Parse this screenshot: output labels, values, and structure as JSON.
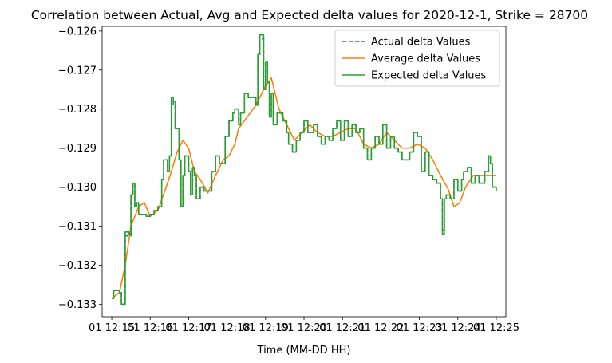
{
  "chart_data": {
    "type": "line",
    "title": "Correlation between Actual, Avg and Expected delta values for 2020-12-1, Strike = 28700",
    "xlabel": "Time (MM-DD HH)",
    "ylabel": "",
    "x_ticks": [
      "01 12:15",
      "01 12:16",
      "01 12:17",
      "01 12:18",
      "01 12:19",
      "01 12:20",
      "01 12:21",
      "01 12:22",
      "01 12:23",
      "01 12:24",
      "01 12:25"
    ],
    "xlim_minutes": [
      -0.25,
      10.25
    ],
    "ylim": [
      -0.13332,
      -0.12588
    ],
    "y_ticks": [
      -0.126,
      -0.127,
      -0.128,
      -0.129,
      -0.13,
      -0.131,
      -0.132,
      -0.133
    ],
    "y_tick_labels": [
      "−0.126",
      "−0.127",
      "−0.128",
      "−0.129",
      "−0.130",
      "−0.131",
      "−0.132",
      "−0.133"
    ],
    "grid": false,
    "legend_position": "top-right",
    "series": [
      {
        "name": "Actual delta Values",
        "color": "#1f77b4",
        "style": "dashed",
        "step": true,
        "points": [
          [
            0.0,
            -0.13285
          ],
          [
            0.05,
            -0.13265
          ],
          [
            0.2,
            -0.1327
          ],
          [
            0.25,
            -0.133
          ],
          [
            0.35,
            -0.13125
          ],
          [
            0.45,
            -0.13125
          ],
          [
            0.5,
            -0.1302
          ],
          [
            0.55,
            -0.1299
          ],
          [
            0.6,
            -0.1305
          ],
          [
            0.65,
            -0.1304
          ],
          [
            0.7,
            -0.1307
          ],
          [
            0.8,
            -0.1307
          ],
          [
            0.9,
            -0.13075
          ],
          [
            1.0,
            -0.1307
          ],
          [
            1.1,
            -0.1306
          ],
          [
            1.2,
            -0.1305
          ],
          [
            1.3,
            -0.1298
          ],
          [
            1.35,
            -0.1293
          ],
          [
            1.45,
            -0.1296
          ],
          [
            1.5,
            -0.1292
          ],
          [
            1.55,
            -0.1278
          ],
          [
            1.6,
            -0.1279
          ],
          [
            1.65,
            -0.1285
          ],
          [
            1.75,
            -0.1293
          ],
          [
            1.8,
            -0.1305
          ],
          [
            1.85,
            -0.1297
          ],
          [
            1.9,
            -0.1292
          ],
          [
            2.0,
            -0.1296
          ],
          [
            2.05,
            -0.1302
          ],
          [
            2.1,
            -0.1295
          ],
          [
            2.15,
            -0.1297
          ],
          [
            2.2,
            -0.1303
          ],
          [
            2.3,
            -0.13
          ],
          [
            2.4,
            -0.1301
          ],
          [
            2.5,
            -0.1301
          ],
          [
            2.6,
            -0.1296
          ],
          [
            2.7,
            -0.1292
          ],
          [
            2.8,
            -0.1294
          ],
          [
            2.95,
            -0.1287
          ],
          [
            3.05,
            -0.1283
          ],
          [
            3.15,
            -0.1281
          ],
          [
            3.2,
            -0.128
          ],
          [
            3.3,
            -0.1284
          ],
          [
            3.35,
            -0.1281
          ],
          [
            3.45,
            -0.1276
          ],
          [
            3.55,
            -0.1277
          ],
          [
            3.7,
            -0.1277
          ],
          [
            3.75,
            -0.1279
          ],
          [
            3.8,
            -0.1266
          ],
          [
            3.85,
            -0.1262
          ],
          [
            3.9,
            -0.1262
          ],
          [
            3.95,
            -0.1275
          ],
          [
            4.0,
            -0.1268
          ],
          [
            4.05,
            -0.1273
          ],
          [
            4.1,
            -0.1282
          ],
          [
            4.15,
            -0.1276
          ],
          [
            4.2,
            -0.1284
          ],
          [
            4.3,
            -0.1281
          ],
          [
            4.45,
            -0.1283
          ],
          [
            4.55,
            -0.1286
          ],
          [
            4.6,
            -0.1289
          ],
          [
            4.7,
            -0.1291
          ],
          [
            4.8,
            -0.1288
          ],
          [
            4.9,
            -0.1286
          ],
          [
            5.0,
            -0.1283
          ],
          [
            5.1,
            -0.1286
          ],
          [
            5.25,
            -0.1284
          ],
          [
            5.35,
            -0.1287
          ],
          [
            5.45,
            -0.1289
          ],
          [
            5.55,
            -0.1287
          ],
          [
            5.65,
            -0.1288
          ],
          [
            5.75,
            -0.1285
          ],
          [
            5.85,
            -0.1283
          ],
          [
            5.95,
            -0.1288
          ],
          [
            6.05,
            -0.1283
          ],
          [
            6.15,
            -0.1287
          ],
          [
            6.25,
            -0.1284
          ],
          [
            6.35,
            -0.1286
          ],
          [
            6.45,
            -0.1285
          ],
          [
            6.55,
            -0.129
          ],
          [
            6.65,
            -0.1293
          ],
          [
            6.75,
            -0.129
          ],
          [
            6.85,
            -0.1287
          ],
          [
            6.95,
            -0.1289
          ],
          [
            7.05,
            -0.1284
          ],
          [
            7.15,
            -0.129
          ],
          [
            7.25,
            -0.1287
          ],
          [
            7.35,
            -0.129
          ],
          [
            7.45,
            -0.1291
          ],
          [
            7.55,
            -0.1293
          ],
          [
            7.65,
            -0.1293
          ],
          [
            7.75,
            -0.1291
          ],
          [
            7.85,
            -0.1286
          ],
          [
            7.95,
            -0.1287
          ],
          [
            8.05,
            -0.1296
          ],
          [
            8.15,
            -0.1291
          ],
          [
            8.25,
            -0.1297
          ],
          [
            8.35,
            -0.1298
          ],
          [
            8.45,
            -0.1299
          ],
          [
            8.55,
            -0.1303
          ],
          [
            8.6,
            -0.1311
          ],
          [
            8.65,
            -0.1303
          ],
          [
            8.7,
            -0.1302
          ],
          [
            8.8,
            -0.1303
          ],
          [
            8.9,
            -0.1298
          ],
          [
            9.0,
            -0.1301
          ],
          [
            9.1,
            -0.1298
          ],
          [
            9.15,
            -0.1296
          ],
          [
            9.25,
            -0.1295
          ],
          [
            9.35,
            -0.1299
          ],
          [
            9.45,
            -0.1297
          ],
          [
            9.55,
            -0.1299
          ],
          [
            9.65,
            -0.1299
          ],
          [
            9.7,
            -0.1296
          ],
          [
            9.8,
            -0.1292
          ],
          [
            9.85,
            -0.1294
          ],
          [
            9.9,
            -0.13
          ],
          [
            10.0,
            -0.1301
          ]
        ]
      },
      {
        "name": "Average delta Values",
        "color": "#ff7f0e",
        "style": "solid",
        "step": false,
        "points": [
          [
            0.0,
            -0.13285
          ],
          [
            0.2,
            -0.1327
          ],
          [
            0.35,
            -0.132
          ],
          [
            0.5,
            -0.131
          ],
          [
            0.7,
            -0.1305
          ],
          [
            0.85,
            -0.1304
          ],
          [
            1.0,
            -0.13075
          ],
          [
            1.2,
            -0.1306
          ],
          [
            1.45,
            -0.1299
          ],
          [
            1.55,
            -0.1296
          ],
          [
            1.7,
            -0.1291
          ],
          [
            1.85,
            -0.1288
          ],
          [
            2.0,
            -0.129
          ],
          [
            2.15,
            -0.1296
          ],
          [
            2.3,
            -0.1298
          ],
          [
            2.5,
            -0.13015
          ],
          [
            2.7,
            -0.1297
          ],
          [
            2.9,
            -0.1293
          ],
          [
            3.05,
            -0.1292
          ],
          [
            3.2,
            -0.1289
          ],
          [
            3.3,
            -0.1285
          ],
          [
            3.45,
            -0.1283
          ],
          [
            3.6,
            -0.1281
          ],
          [
            3.75,
            -0.1279
          ],
          [
            3.9,
            -0.1276
          ],
          [
            4.0,
            -0.1274
          ],
          [
            4.1,
            -0.1273
          ],
          [
            4.15,
            -0.1272
          ],
          [
            4.25,
            -0.1276
          ],
          [
            4.35,
            -0.128
          ],
          [
            4.55,
            -0.1284
          ],
          [
            4.75,
            -0.1288
          ],
          [
            4.95,
            -0.1286
          ],
          [
            5.15,
            -0.1284
          ],
          [
            5.35,
            -0.1286
          ],
          [
            5.55,
            -0.1287
          ],
          [
            5.75,
            -0.1287
          ],
          [
            5.95,
            -0.1286
          ],
          [
            6.15,
            -0.1285
          ],
          [
            6.35,
            -0.1285
          ],
          [
            6.55,
            -0.1289
          ],
          [
            6.75,
            -0.129
          ],
          [
            6.95,
            -0.1289
          ],
          [
            7.15,
            -0.1286
          ],
          [
            7.35,
            -0.1288
          ],
          [
            7.55,
            -0.129
          ],
          [
            7.75,
            -0.129
          ],
          [
            7.95,
            -0.1289
          ],
          [
            8.15,
            -0.129
          ],
          [
            8.35,
            -0.1293
          ],
          [
            8.55,
            -0.1297
          ],
          [
            8.75,
            -0.13005
          ],
          [
            8.9,
            -0.1305
          ],
          [
            9.05,
            -0.1304
          ],
          [
            9.2,
            -0.13
          ],
          [
            9.4,
            -0.1297
          ],
          [
            9.6,
            -0.1297
          ],
          [
            9.8,
            -0.1297
          ],
          [
            10.0,
            -0.1297
          ]
        ]
      },
      {
        "name": "Expected delta Values",
        "color": "#2ca02c",
        "style": "solid",
        "step": true,
        "points": [
          [
            0.0,
            -0.13285
          ],
          [
            0.05,
            -0.13265
          ],
          [
            0.2,
            -0.1327
          ],
          [
            0.25,
            -0.133
          ],
          [
            0.35,
            -0.13115
          ],
          [
            0.45,
            -0.1312
          ],
          [
            0.5,
            -0.1302
          ],
          [
            0.55,
            -0.1299
          ],
          [
            0.6,
            -0.1305
          ],
          [
            0.65,
            -0.1304
          ],
          [
            0.7,
            -0.1307
          ],
          [
            0.8,
            -0.1307
          ],
          [
            0.9,
            -0.13075
          ],
          [
            1.0,
            -0.1307
          ],
          [
            1.1,
            -0.1306
          ],
          [
            1.2,
            -0.1305
          ],
          [
            1.3,
            -0.1298
          ],
          [
            1.35,
            -0.1293
          ],
          [
            1.45,
            -0.1296
          ],
          [
            1.5,
            -0.1292
          ],
          [
            1.55,
            -0.1277
          ],
          [
            1.6,
            -0.1278
          ],
          [
            1.65,
            -0.1285
          ],
          [
            1.75,
            -0.1293
          ],
          [
            1.8,
            -0.1305
          ],
          [
            1.85,
            -0.1297
          ],
          [
            1.9,
            -0.1292
          ],
          [
            2.0,
            -0.1296
          ],
          [
            2.05,
            -0.1302
          ],
          [
            2.1,
            -0.1295
          ],
          [
            2.15,
            -0.1297
          ],
          [
            2.2,
            -0.1303
          ],
          [
            2.3,
            -0.13
          ],
          [
            2.4,
            -0.1301
          ],
          [
            2.5,
            -0.1301
          ],
          [
            2.6,
            -0.1296
          ],
          [
            2.7,
            -0.1292
          ],
          [
            2.8,
            -0.1294
          ],
          [
            2.95,
            -0.1287
          ],
          [
            3.05,
            -0.1283
          ],
          [
            3.15,
            -0.1281
          ],
          [
            3.2,
            -0.128
          ],
          [
            3.3,
            -0.1284
          ],
          [
            3.35,
            -0.1281
          ],
          [
            3.45,
            -0.1276
          ],
          [
            3.55,
            -0.1277
          ],
          [
            3.7,
            -0.1277
          ],
          [
            3.75,
            -0.1279
          ],
          [
            3.8,
            -0.1266
          ],
          [
            3.85,
            -0.1261
          ],
          [
            3.9,
            -0.1261
          ],
          [
            3.95,
            -0.1275
          ],
          [
            4.0,
            -0.1268
          ],
          [
            4.05,
            -0.1273
          ],
          [
            4.1,
            -0.1282
          ],
          [
            4.15,
            -0.1276
          ],
          [
            4.2,
            -0.1284
          ],
          [
            4.3,
            -0.1281
          ],
          [
            4.45,
            -0.1283
          ],
          [
            4.55,
            -0.1286
          ],
          [
            4.6,
            -0.1289
          ],
          [
            4.7,
            -0.1291
          ],
          [
            4.8,
            -0.1288
          ],
          [
            4.9,
            -0.1286
          ],
          [
            5.0,
            -0.1283
          ],
          [
            5.1,
            -0.1286
          ],
          [
            5.25,
            -0.1284
          ],
          [
            5.35,
            -0.1287
          ],
          [
            5.45,
            -0.1289
          ],
          [
            5.55,
            -0.1287
          ],
          [
            5.65,
            -0.1288
          ],
          [
            5.75,
            -0.1285
          ],
          [
            5.85,
            -0.1283
          ],
          [
            5.95,
            -0.1288
          ],
          [
            6.05,
            -0.1283
          ],
          [
            6.15,
            -0.1287
          ],
          [
            6.25,
            -0.1284
          ],
          [
            6.35,
            -0.1286
          ],
          [
            6.45,
            -0.1285
          ],
          [
            6.55,
            -0.129
          ],
          [
            6.65,
            -0.1293
          ],
          [
            6.75,
            -0.129
          ],
          [
            6.85,
            -0.1287
          ],
          [
            6.95,
            -0.1289
          ],
          [
            7.05,
            -0.1284
          ],
          [
            7.15,
            -0.129
          ],
          [
            7.25,
            -0.1287
          ],
          [
            7.35,
            -0.129
          ],
          [
            7.45,
            -0.1291
          ],
          [
            7.55,
            -0.1293
          ],
          [
            7.65,
            -0.1293
          ],
          [
            7.75,
            -0.1291
          ],
          [
            7.85,
            -0.1286
          ],
          [
            7.95,
            -0.1287
          ],
          [
            8.05,
            -0.1296
          ],
          [
            8.15,
            -0.1291
          ],
          [
            8.25,
            -0.1297
          ],
          [
            8.35,
            -0.1298
          ],
          [
            8.45,
            -0.1299
          ],
          [
            8.55,
            -0.1303
          ],
          [
            8.6,
            -0.1312
          ],
          [
            8.65,
            -0.1303
          ],
          [
            8.7,
            -0.1302
          ],
          [
            8.8,
            -0.1303
          ],
          [
            8.9,
            -0.1298
          ],
          [
            9.0,
            -0.1301
          ],
          [
            9.1,
            -0.1298
          ],
          [
            9.15,
            -0.1296
          ],
          [
            9.25,
            -0.1295
          ],
          [
            9.35,
            -0.1299
          ],
          [
            9.45,
            -0.1297
          ],
          [
            9.55,
            -0.1299
          ],
          [
            9.65,
            -0.1299
          ],
          [
            9.7,
            -0.1296
          ],
          [
            9.8,
            -0.1292
          ],
          [
            9.85,
            -0.1294
          ],
          [
            9.9,
            -0.13
          ],
          [
            10.0,
            -0.1301
          ]
        ]
      }
    ]
  }
}
